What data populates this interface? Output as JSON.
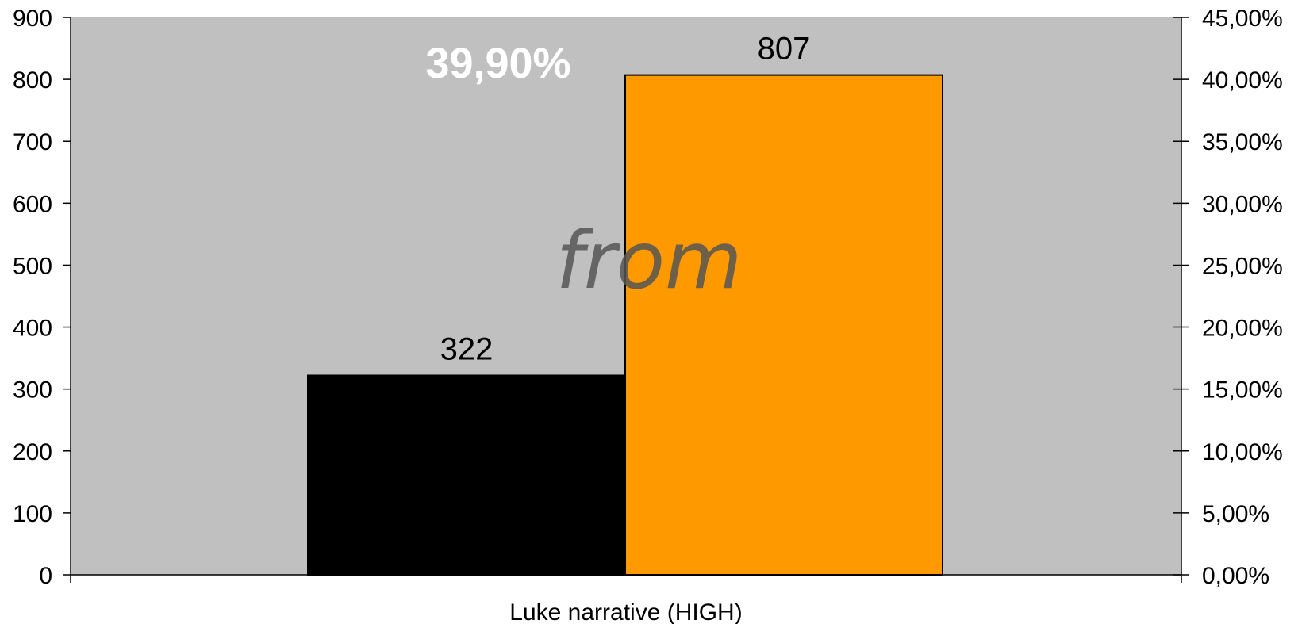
{
  "colors": {
    "plot_bg": "#c0c0c0",
    "axis": "#000000",
    "series_1": "#000000",
    "series_2": "#ff9900",
    "annotation_pct": "#ffffff",
    "annotation_word": "#555555"
  },
  "chart_data": {
    "type": "bar",
    "categories": [
      "Luke narrative (HIGH)"
    ],
    "series": [
      {
        "values": [
          322
        ]
      },
      {
        "values": [
          807
        ]
      }
    ],
    "data_labels": [
      "322",
      "807"
    ],
    "ylim": [
      0,
      900
    ],
    "y_ticks": [
      0,
      100,
      200,
      300,
      400,
      500,
      600,
      700,
      800,
      900
    ],
    "y_tick_labels": [
      "0",
      "100",
      "200",
      "300",
      "400",
      "500",
      "600",
      "700",
      "800",
      "900"
    ],
    "y2lim": [
      0,
      45
    ],
    "y2_tick_labels": [
      "0,00%",
      "5,00%",
      "10,00%",
      "15,00%",
      "20,00%",
      "25,00%",
      "30,00%",
      "35,00%",
      "40,00%",
      "45,00%"
    ],
    "annotations": [
      "39,90%",
      "from"
    ],
    "legend": "none",
    "grid": false
  }
}
